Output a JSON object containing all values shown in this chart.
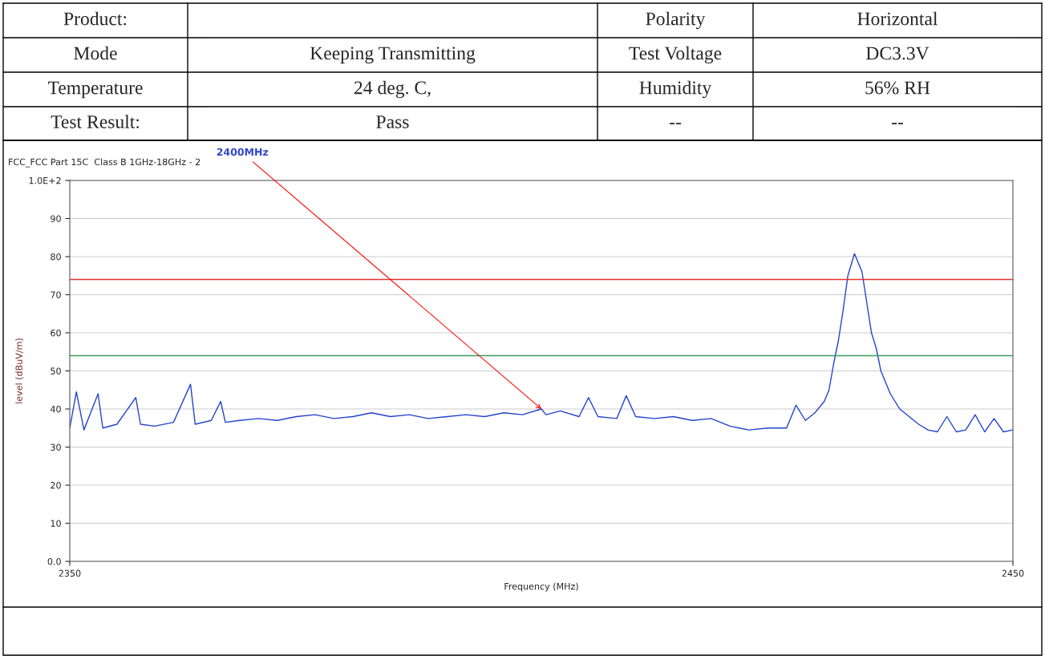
{
  "chart_data": {
    "type": "line",
    "title": "FCC_FCC Part 15C  Class B 1GHz-18GHz - 2",
    "xlabel": "Frequency (MHz)",
    "ylabel": "level (dBuV/m)",
    "x": [
      2350,
      2350.7,
      2351.5,
      2353,
      2353.5,
      2355,
      2357,
      2357.5,
      2359,
      2361,
      2362.8,
      2363.3,
      2365,
      2366,
      2366.5,
      2368,
      2370,
      2372,
      2374,
      2376,
      2378,
      2380,
      2382,
      2384,
      2386,
      2388,
      2390,
      2392,
      2394,
      2396,
      2398,
      2400,
      2400.5,
      2402,
      2404,
      2405,
      2406,
      2408,
      2409,
      2410,
      2412,
      2414,
      2416,
      2418,
      2420,
      2421,
      2422,
      2424,
      2426,
      2427,
      2428,
      2429,
      2430,
      2430.5,
      2431,
      2431.5,
      2432,
      2432.5,
      2433.2,
      2434,
      2434.5,
      2435,
      2435.5,
      2436,
      2436.5,
      2437,
      2438,
      2439,
      2440,
      2441,
      2442,
      2443,
      2444,
      2445,
      2446,
      2447,
      2448,
      2449,
      2450
    ],
    "series": [
      {
        "color": "#2244cc",
        "values": [
          35,
          44.5,
          34.5,
          44,
          35,
          36,
          43,
          36,
          35.5,
          36.5,
          46.5,
          36,
          37,
          42,
          36.5,
          37,
          37.5,
          37,
          38,
          38.5,
          37.5,
          38,
          39,
          38,
          38.5,
          37.5,
          38,
          38.5,
          38,
          39,
          38.5,
          40,
          38.5,
          39.5,
          38,
          43,
          38,
          37.5,
          43.5,
          38,
          37.5,
          38,
          37,
          37.5,
          35.5,
          35,
          34.5,
          35,
          35,
          41,
          37,
          39,
          42,
          45,
          52,
          58,
          66,
          75,
          80.8,
          76,
          68,
          60,
          56,
          50,
          47,
          44,
          40,
          38,
          36,
          34.5,
          34,
          38,
          34,
          34.5,
          38.5,
          34,
          37.5,
          34,
          34.5
        ]
      }
    ],
    "xlim": [
      2350,
      2450
    ],
    "xticks": [
      2350,
      2450
    ],
    "ylim": [
      0,
      100
    ],
    "yticks": [
      {
        "value": 0,
        "label": "0.0"
      },
      10,
      20,
      30,
      40,
      50,
      60,
      70,
      80,
      90,
      {
        "value": 100,
        "label": "1.0E+2"
      }
    ],
    "grid": "y",
    "ref_lines": [
      {
        "axis": "y",
        "value": 74,
        "color": "#e83030"
      },
      {
        "axis": "y",
        "value": 54,
        "color": "#3a9a5a"
      }
    ],
    "annotations": [
      {
        "text": "2400MHz",
        "x": 2400,
        "y": 40
      },
      "Product:",
      "Polarity",
      "Horizontal",
      "Mode",
      "Keeping Transmitting",
      "Test Voltage",
      "DC3.3V",
      "Temperature",
      "24 deg. C,",
      "Humidity",
      "56% RH",
      "Test Result:",
      "Pass",
      "--",
      "--"
    ]
  }
}
